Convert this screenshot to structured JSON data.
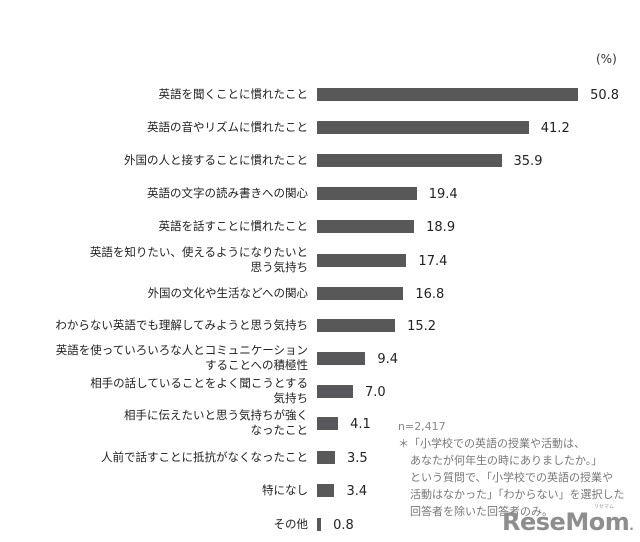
{
  "chart_data": {
    "type": "bar",
    "orientation": "horizontal",
    "title": "",
    "xlabel": "",
    "ylabel": "",
    "unit_label": "(%)",
    "xlim": [
      0,
      55
    ],
    "grid": false,
    "bar_color": "#58585a",
    "categories": [
      "英語を聞くことに慣れたこと",
      "英語の音やリズムに慣れたこと",
      "外国の人と接することに慣れたこと",
      "英語の文字の読み書きへの関心",
      "英語を話すことに慣れたこと",
      "英語を知りたい、使えるようになりたいと思う気持ち",
      "外国の文化や生活などへの関心",
      "わからない英語でも理解してみようと思う気持ち",
      "英語を使っていろいろな人とコミュニケーションすることへの積極性",
      "相手の話していることをよく聞こうとする気持ち",
      "相手に伝えたいと思う気持ちが強くなったこと",
      "人前で話すことに抵抗がなくなったこと",
      "特になし",
      "その他"
    ],
    "values": [
      50.8,
      41.2,
      35.9,
      19.4,
      18.9,
      17.4,
      16.8,
      15.2,
      9.4,
      7.0,
      4.1,
      3.5,
      3.4,
      0.8
    ],
    "annotations": [
      "n=2,417",
      "＊「小学校での英語の授業や活動は、あなたが何年生の時にありましたか。」という質問で、「小学校での英語の授業や活動はなかった」「わからない」を選択した回答者を除いた回答者のみ。"
    ]
  },
  "unit_label": "(%)",
  "rows": [
    {
      "lines": [
        "英語を聞くことに慣れたこと"
      ],
      "value": "50.8",
      "num": 50.8
    },
    {
      "lines": [
        "英語の音やリズムに慣れたこと"
      ],
      "value": "41.2",
      "num": 41.2
    },
    {
      "lines": [
        "外国の人と接することに慣れたこと"
      ],
      "value": "35.9",
      "num": 35.9
    },
    {
      "lines": [
        "英語の文字の読み書きへの関心"
      ],
      "value": "19.4",
      "num": 19.4
    },
    {
      "lines": [
        "英語を話すことに慣れたこと"
      ],
      "value": "18.9",
      "num": 18.9
    },
    {
      "lines": [
        "英語を知りたい、使えるようになりたいと",
        "思う気持ち"
      ],
      "value": "17.4",
      "num": 17.4
    },
    {
      "lines": [
        "外国の文化や生活などへの関心"
      ],
      "value": "16.8",
      "num": 16.8
    },
    {
      "lines": [
        "わからない英語でも理解してみようと思う気持ち"
      ],
      "value": "15.2",
      "num": 15.2
    },
    {
      "lines": [
        "英語を使っていろいろな人とコミュニケーション",
        "することへの積極性"
      ],
      "value": "9.4",
      "num": 9.4
    },
    {
      "lines": [
        "相手の話していることをよく聞こうとする",
        "気持ち"
      ],
      "value": "7.0",
      "num": 7.0
    },
    {
      "lines": [
        "相手に伝えたいと思う気持ちが強く",
        "なったこと"
      ],
      "value": "4.1",
      "num": 4.1
    },
    {
      "lines": [
        "人前で話すことに抵抗がなくなったこと"
      ],
      "value": "3.5",
      "num": 3.5
    },
    {
      "lines": [
        "特になし"
      ],
      "value": "3.4",
      "num": 3.4
    },
    {
      "lines": [
        "その他"
      ],
      "value": "0.8",
      "num": 0.8
    }
  ],
  "note": {
    "sample": "n=2,417",
    "lines": [
      "＊「小学校での英語の授業や活動は、",
      "あなたが何年生の時にありましたか。」",
      "という質問で、「小学校での英語の授業や",
      "活動はなかった」「わからない」を選択した",
      "回答者を除いた回答者のみ。"
    ]
  },
  "watermark": {
    "text": "ReseMom",
    "ruby": "リセマム"
  }
}
